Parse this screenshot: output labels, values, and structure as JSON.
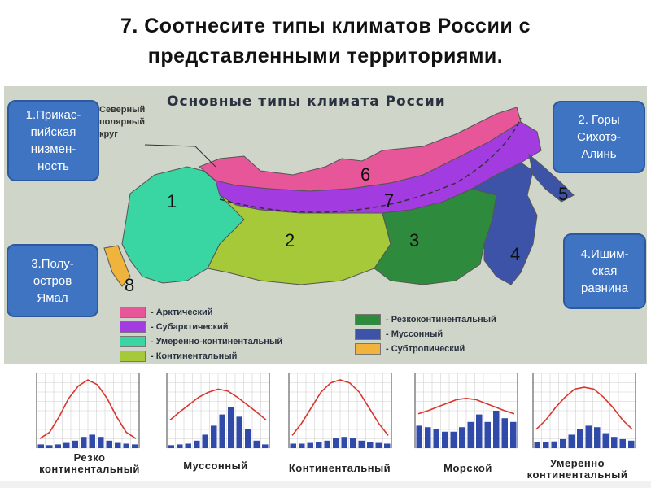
{
  "title_line1": "7. Соотнесите типы климатов России с",
  "title_line2": "представленными территориями.",
  "map": {
    "title": "Основные типы климата России",
    "polar_line1": "Северный",
    "polar_line2": "полярный",
    "polar_line3": "круг",
    "numbers": [
      "1",
      "2",
      "3",
      "4",
      "5",
      "6",
      "7",
      "8"
    ]
  },
  "legend": [
    {
      "label": "- Арктический",
      "color": "#e8569a"
    },
    {
      "label": "- Субарктический",
      "color": "#a23be0"
    },
    {
      "label": "- Умеренно-континентальный",
      "color": "#39d6a3"
    },
    {
      "label": "- Континентальный",
      "color": "#a6c93a"
    },
    {
      "label": "- Резкоконтинентальный",
      "color": "#2e8b3e"
    },
    {
      "label": "- Муссонный",
      "color": "#3d53a8"
    },
    {
      "label": "- Субтропический",
      "color": "#f0b43c"
    }
  ],
  "callouts": {
    "c1_l1": "1.Прикас-",
    "c1_l2": "пийская",
    "c1_l3": "низмен-",
    "c1_l4": "ность",
    "c2_l1": "2. Горы",
    "c2_l2": "Сихотэ-",
    "c2_l3": "Алинь",
    "c3_l1": "3.Полу-",
    "c3_l2": "остров",
    "c3_l3": "Ямал",
    "c4_l1": "4.Ишим-",
    "c4_l2": "ская",
    "c4_l3": "равнина"
  },
  "charts": [
    {
      "label1": "Резко",
      "label2": "континентальный"
    },
    {
      "label1": "Муссонный",
      "label2": ""
    },
    {
      "label1": "Континентальный",
      "label2": ""
    },
    {
      "label1": "Морской",
      "label2": ""
    },
    {
      "label1": "Умеренно",
      "label2": "континентальный"
    }
  ],
  "chart_data": [
    {
      "type": "line",
      "curve": [
        0.05,
        0.15,
        0.4,
        0.7,
        0.9,
        1.0,
        0.92,
        0.7,
        0.4,
        0.15,
        0.05
      ],
      "bars": [
        0.05,
        0.04,
        0.05,
        0.07,
        0.1,
        0.15,
        0.18,
        0.15,
        0.1,
        0.07,
        0.06,
        0.05
      ]
    },
    {
      "type": "line",
      "curve": [
        0.35,
        0.48,
        0.6,
        0.72,
        0.8,
        0.85,
        0.82,
        0.72,
        0.6,
        0.48,
        0.35
      ],
      "bars": [
        0.04,
        0.05,
        0.06,
        0.1,
        0.18,
        0.3,
        0.45,
        0.55,
        0.42,
        0.25,
        0.1,
        0.05
      ]
    },
    {
      "type": "line",
      "curve": [
        0.1,
        0.3,
        0.55,
        0.8,
        0.95,
        1.0,
        0.95,
        0.8,
        0.55,
        0.3,
        0.1
      ],
      "bars": [
        0.06,
        0.06,
        0.07,
        0.08,
        0.1,
        0.13,
        0.15,
        0.13,
        0.1,
        0.08,
        0.07,
        0.06
      ]
    },
    {
      "type": "line",
      "curve": [
        0.45,
        0.5,
        0.56,
        0.62,
        0.68,
        0.7,
        0.68,
        0.62,
        0.56,
        0.5,
        0.45
      ],
      "bars": [
        0.3,
        0.28,
        0.25,
        0.22,
        0.22,
        0.28,
        0.35,
        0.45,
        0.35,
        0.5,
        0.4,
        0.35
      ]
    },
    {
      "type": "line",
      "curve": [
        0.2,
        0.35,
        0.55,
        0.72,
        0.85,
        0.88,
        0.85,
        0.72,
        0.55,
        0.35,
        0.2
      ],
      "bars": [
        0.08,
        0.08,
        0.09,
        0.12,
        0.18,
        0.25,
        0.3,
        0.28,
        0.2,
        0.15,
        0.12,
        0.1
      ]
    }
  ]
}
